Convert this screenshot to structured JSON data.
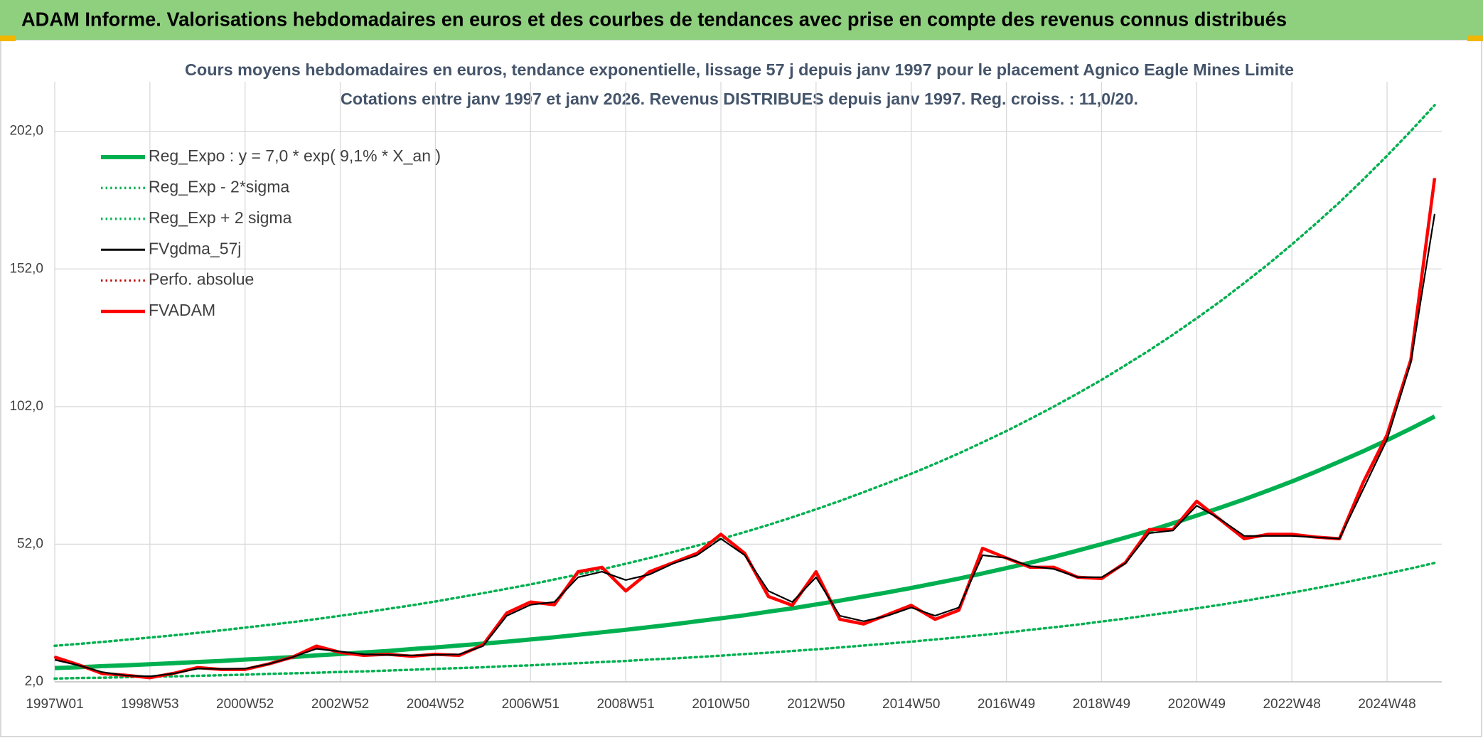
{
  "header": {
    "title": "ADAM Informe. Valorisations hebdomadaires en euros et des courbes de tendances avec prise en compte des revenus connus distribués"
  },
  "chart_data": {
    "type": "line",
    "title": "Cours moyens hebdomadaires en euros, tendance exponentielle, lissage 57 j depuis janv 1997 pour le placement Agnico Eagle Mines Limite",
    "subtitle": "Cotations entre janv 1997 et janv 2026. Revenus DISTRIBUES depuis janv 1997. Reg. croiss. : 11,0/20.",
    "categories": [
      "1997W01",
      null,
      null,
      null,
      "1998W53",
      null,
      null,
      null,
      "2000W52",
      null,
      null,
      null,
      "2002W52",
      null,
      null,
      null,
      "2004W52",
      null,
      null,
      null,
      "2006W51",
      null,
      null,
      null,
      "2008W51",
      null,
      null,
      null,
      "2010W50",
      null,
      null,
      null,
      "2012W50",
      null,
      null,
      null,
      "2014W50",
      null,
      null,
      null,
      "2016W49",
      null,
      null,
      null,
      "2018W49",
      null,
      null,
      null,
      "2020W49",
      null,
      null,
      null,
      "2022W48",
      null,
      null,
      null,
      "2024W48",
      null,
      null
    ],
    "ylim": [
      2,
      220
    ],
    "yticks": [
      {
        "value": 2,
        "label": "2,0"
      },
      {
        "value": 52,
        "label": "52,0"
      },
      {
        "value": 102,
        "label": "102,0"
      },
      {
        "value": 152,
        "label": "152,0"
      },
      {
        "value": 202,
        "label": "202,0"
      }
    ],
    "grid": true,
    "legend": "upper left",
    "series": [
      {
        "name": "Reg_Expo : y = 7,0 * exp( 9,1% *  X_an )",
        "color": "#00b050",
        "style": "solid",
        "width": 6,
        "values": [
          7.0,
          7.3,
          7.7,
          8.0,
          8.4,
          8.8,
          9.2,
          9.6,
          10.1,
          10.5,
          11.0,
          11.6,
          12.1,
          12.7,
          13.2,
          13.9,
          14.5,
          15.2,
          15.9,
          16.6,
          17.4,
          18.2,
          19.1,
          20.0,
          20.9,
          21.9,
          22.9,
          24.0,
          25.1,
          26.2,
          27.5,
          28.7,
          30.1,
          31.5,
          33.0,
          34.5,
          36.1,
          37.8,
          39.5,
          41.4,
          43.3,
          45.3,
          47.4,
          49.7,
          52.0,
          54.4,
          56.9,
          59.6,
          62.4,
          65.3,
          68.3,
          71.5,
          74.8,
          78.3,
          82.0,
          85.8,
          89.8,
          94.0,
          98.4
        ]
      },
      {
        "name": "Reg_Exp - 2*sigma",
        "color": "#00b050",
        "style": "dotted",
        "width": 3.5,
        "values": [
          3.2,
          3.4,
          3.5,
          3.7,
          3.9,
          4.0,
          4.2,
          4.4,
          4.6,
          4.9,
          5.1,
          5.3,
          5.6,
          5.8,
          6.1,
          6.4,
          6.7,
          7.0,
          7.3,
          7.7,
          8.0,
          8.4,
          8.8,
          9.2,
          9.6,
          10.1,
          10.5,
          11.0,
          11.5,
          12.1,
          12.6,
          13.2,
          13.8,
          14.5,
          15.2,
          15.9,
          16.6,
          17.4,
          18.2,
          19.0,
          19.9,
          20.9,
          21.8,
          22.8,
          23.9,
          25.0,
          26.2,
          27.4,
          28.7,
          30.0,
          31.4,
          32.9,
          34.4,
          36.0,
          37.7,
          39.5,
          41.3,
          43.2,
          45.2
        ]
      },
      {
        "name": "Reg_Exp + 2 sigma",
        "color": "#00b050",
        "style": "dotted",
        "width": 3.5,
        "values": [
          15.1,
          15.8,
          16.5,
          17.3,
          18.1,
          18.9,
          19.8,
          20.7,
          21.7,
          22.7,
          23.7,
          24.8,
          26.0,
          27.2,
          28.5,
          29.8,
          31.2,
          32.7,
          34.2,
          35.8,
          37.4,
          39.2,
          41.0,
          42.9,
          44.9,
          47.0,
          49.2,
          51.5,
          53.9,
          56.4,
          59.0,
          61.8,
          64.7,
          67.7,
          70.9,
          74.2,
          77.6,
          81.2,
          85.0,
          89.0,
          93.1,
          97.5,
          102.0,
          106.8,
          111.7,
          117.0,
          122.4,
          128.1,
          134.1,
          140.3,
          146.9,
          153.7,
          160.9,
          168.4,
          176.2,
          184.5,
          193.1,
          202.1,
          211.5
        ]
      },
      {
        "name": "FVgdma_57j",
        "color": "#000000",
        "style": "solid",
        "width": 2.2,
        "values": [
          10,
          8,
          5.5,
          4.3,
          4,
          5,
          6.8,
          6.7,
          6.8,
          8.5,
          11,
          14,
          13,
          12,
          11.8,
          11.6,
          11.8,
          12,
          15,
          26,
          30,
          31,
          40,
          42,
          39,
          41,
          45,
          48,
          54,
          48,
          35,
          31,
          40,
          26,
          24,
          26,
          29,
          26,
          29,
          48,
          47,
          44,
          43,
          40,
          40,
          45,
          56,
          57,
          66,
          61,
          55,
          55,
          55,
          54.5,
          54,
          72,
          90,
          118,
          172
        ]
      },
      {
        "name": "Perfo. absolue",
        "color": "#c00000",
        "style": "dotted",
        "width": 2.2,
        "values": [
          11,
          8.2,
          5,
          4.4,
          3.5,
          5.1,
          7.2,
          6.5,
          6.5,
          8.5,
          11,
          15,
          12.7,
          11.6,
          12,
          11.3,
          12,
          11.6,
          15.4,
          27,
          31,
          30,
          42,
          43.6,
          35,
          42,
          45.3,
          48.7,
          55.6,
          48.7,
          33,
          29.8,
          42,
          24.7,
          23,
          26.4,
          29.8,
          24.7,
          28,
          50.5,
          47,
          43.6,
          43.6,
          40,
          39.5,
          45.3,
          57.3,
          57.3,
          67.6,
          60.8,
          54,
          55.6,
          55.6,
          54.6,
          54,
          74.5,
          91.7,
          119,
          185
        ]
      },
      {
        "name": "FVADAM",
        "color": "#ff0000",
        "style": "solid",
        "width": 4.5,
        "values": [
          11,
          8.2,
          5,
          4.4,
          3.5,
          5.1,
          7.2,
          6.5,
          6.5,
          8.5,
          11,
          15,
          12.7,
          11.6,
          12,
          11.3,
          12,
          11.6,
          15.4,
          27,
          31,
          30,
          42,
          43.6,
          35,
          42,
          45.3,
          48.7,
          55.6,
          48.7,
          33,
          29.8,
          42,
          24.7,
          23,
          26.4,
          29.8,
          24.7,
          28,
          50.5,
          47,
          43.6,
          43.6,
          40,
          39.5,
          45.3,
          57.3,
          57.3,
          67.6,
          60.8,
          54,
          55.6,
          55.6,
          54.6,
          54,
          74.5,
          91.7,
          119,
          185
        ]
      }
    ]
  }
}
